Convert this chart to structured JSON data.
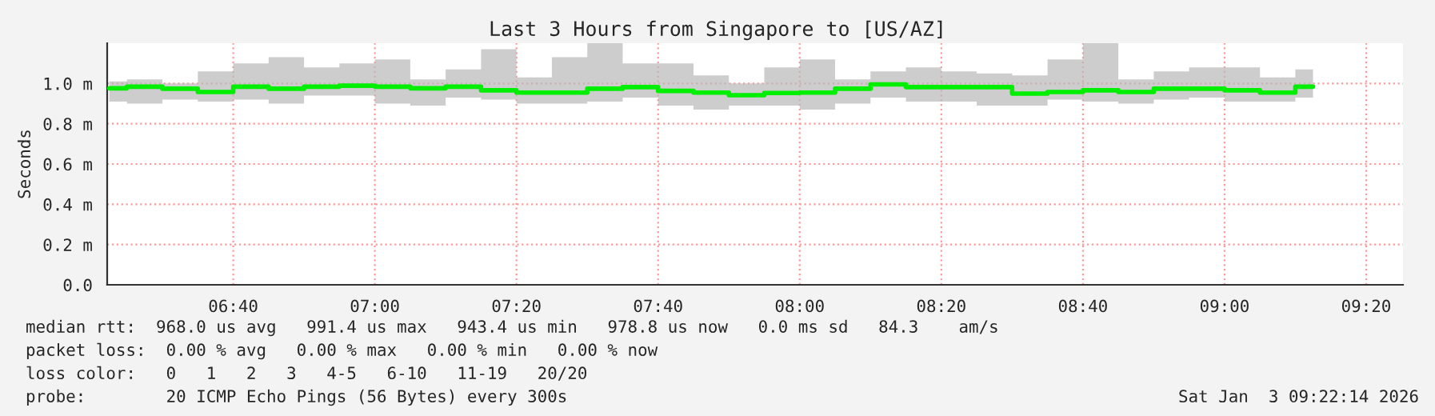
{
  "chart_data": {
    "type": "step",
    "title": "Last 3 Hours from Singapore to [US/AZ]",
    "ylabel": "Seconds",
    "x": [
      6.375,
      6.4583,
      6.5417,
      6.625,
      6.7083,
      6.7917,
      6.875,
      6.9583,
      7.0417,
      7.125,
      7.2083,
      7.2917,
      7.375,
      7.4583,
      7.5417,
      7.625,
      7.7083,
      7.7917,
      7.875,
      7.9583,
      8.0417,
      8.125,
      8.2083,
      8.2917,
      8.375,
      8.4583,
      8.5417,
      8.625,
      8.7083,
      8.7917,
      8.875,
      8.9583,
      9.0417,
      9.125,
      9.2083
    ],
    "series": [
      {
        "color": "#00ee00",
        "values": [
          0.976,
          0.984,
          0.974,
          0.958,
          0.984,
          0.974,
          0.984,
          0.989,
          0.984,
          0.976,
          0.984,
          0.966,
          0.955,
          0.955,
          0.974,
          0.982,
          0.963,
          0.955,
          0.942,
          0.953,
          0.955,
          0.974,
          0.995,
          0.982,
          0.982,
          0.982,
          0.95,
          0.958,
          0.966,
          0.958,
          0.974,
          0.974,
          0.966,
          0.955,
          0.984
        ],
        "lower": [
          0.91,
          0.9,
          0.92,
          0.91,
          0.92,
          0.9,
          0.94,
          0.94,
          0.9,
          0.89,
          0.93,
          0.92,
          0.9,
          0.9,
          0.91,
          0.93,
          0.89,
          0.87,
          0.89,
          0.89,
          0.87,
          0.9,
          0.93,
          0.91,
          0.91,
          0.89,
          0.89,
          0.92,
          0.91,
          0.9,
          0.92,
          0.93,
          0.91,
          0.91,
          0.93
        ],
        "upper": [
          1.01,
          1.02,
          1.0,
          1.06,
          1.1,
          1.13,
          1.08,
          1.1,
          1.12,
          1.02,
          1.07,
          1.17,
          1.03,
          1.13,
          1.2,
          1.1,
          1.1,
          1.04,
          1.0,
          1.08,
          1.12,
          1.02,
          1.06,
          1.08,
          1.06,
          1.05,
          1.04,
          1.12,
          1.2,
          1.02,
          1.06,
          1.08,
          1.08,
          1.03,
          1.07
        ]
      }
    ],
    "xlim": [
      6.37,
      9.42
    ],
    "ylim": [
      0,
      1.2
    ],
    "xticks": [
      {
        "value": 6.6667,
        "label": "06:40"
      },
      {
        "value": 7,
        "label": "07:00"
      },
      {
        "value": 7.3333,
        "label": "07:20"
      },
      {
        "value": 7.6667,
        "label": "07:40"
      },
      {
        "value": 8,
        "label": "08:00"
      },
      {
        "value": 8.3333,
        "label": "08:20"
      },
      {
        "value": 8.6667,
        "label": "08:40"
      },
      {
        "value": 9,
        "label": "09:00"
      },
      {
        "value": 9.3333,
        "label": "09:20"
      }
    ],
    "yticks": [
      {
        "value": 0,
        "label": "0.0"
      },
      {
        "value": 0.2,
        "label": "0.2 m"
      },
      {
        "value": 0.4,
        "label": "0.4 m"
      },
      {
        "value": 0.6,
        "label": "0.6 m"
      },
      {
        "value": 0.8,
        "label": "0.8 m"
      },
      {
        "value": 1.0,
        "label": "1.0 m"
      }
    ],
    "grid": true,
    "annotations": [
      "median rtt:  968.0 us avg   991.4 us max   943.4 us min   978.8 us now   0.0 ms sd   84.3    am/s",
      "packet loss:  0.00 % avg   0.00 % max   0.00 % min   0.00 % now",
      "loss color:   0   1   2   3   4-5   6-10   11-19   20/20",
      "probe:        20 ICMP Echo Pings (56 Bytes) every 300s",
      "Sat Jan  3 09:22:14 2026"
    ]
  }
}
